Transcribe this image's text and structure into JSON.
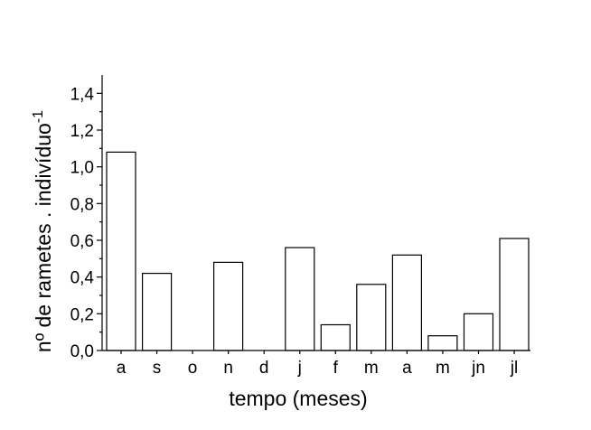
{
  "chart_data": {
    "type": "bar",
    "categories": [
      "a",
      "s",
      "o",
      "n",
      "d",
      "j",
      "f",
      "m",
      "a",
      "m",
      "jn",
      "jl"
    ],
    "values": [
      1.08,
      0.42,
      0,
      0.48,
      0,
      0.56,
      0.14,
      0.36,
      0.52,
      0.08,
      0.2,
      0.61
    ],
    "title": "",
    "xlabel": "tempo (meses)",
    "ylabel": "nº de rametes . indivíduo",
    "ylabel_superscript": "-1",
    "ylim": [
      0,
      1.5
    ],
    "yticks": [
      0,
      0.2,
      0.4,
      0.6,
      0.8,
      1.0,
      1.2,
      1.4
    ],
    "ytick_labels": [
      "0,0",
      "0,2",
      "0,4",
      "0,6",
      "0,8",
      "1,0",
      "1,2",
      "1,4"
    ],
    "grid": false,
    "legend": "none",
    "bar_fill": "#ffffff",
    "bar_stroke": "#000000"
  }
}
